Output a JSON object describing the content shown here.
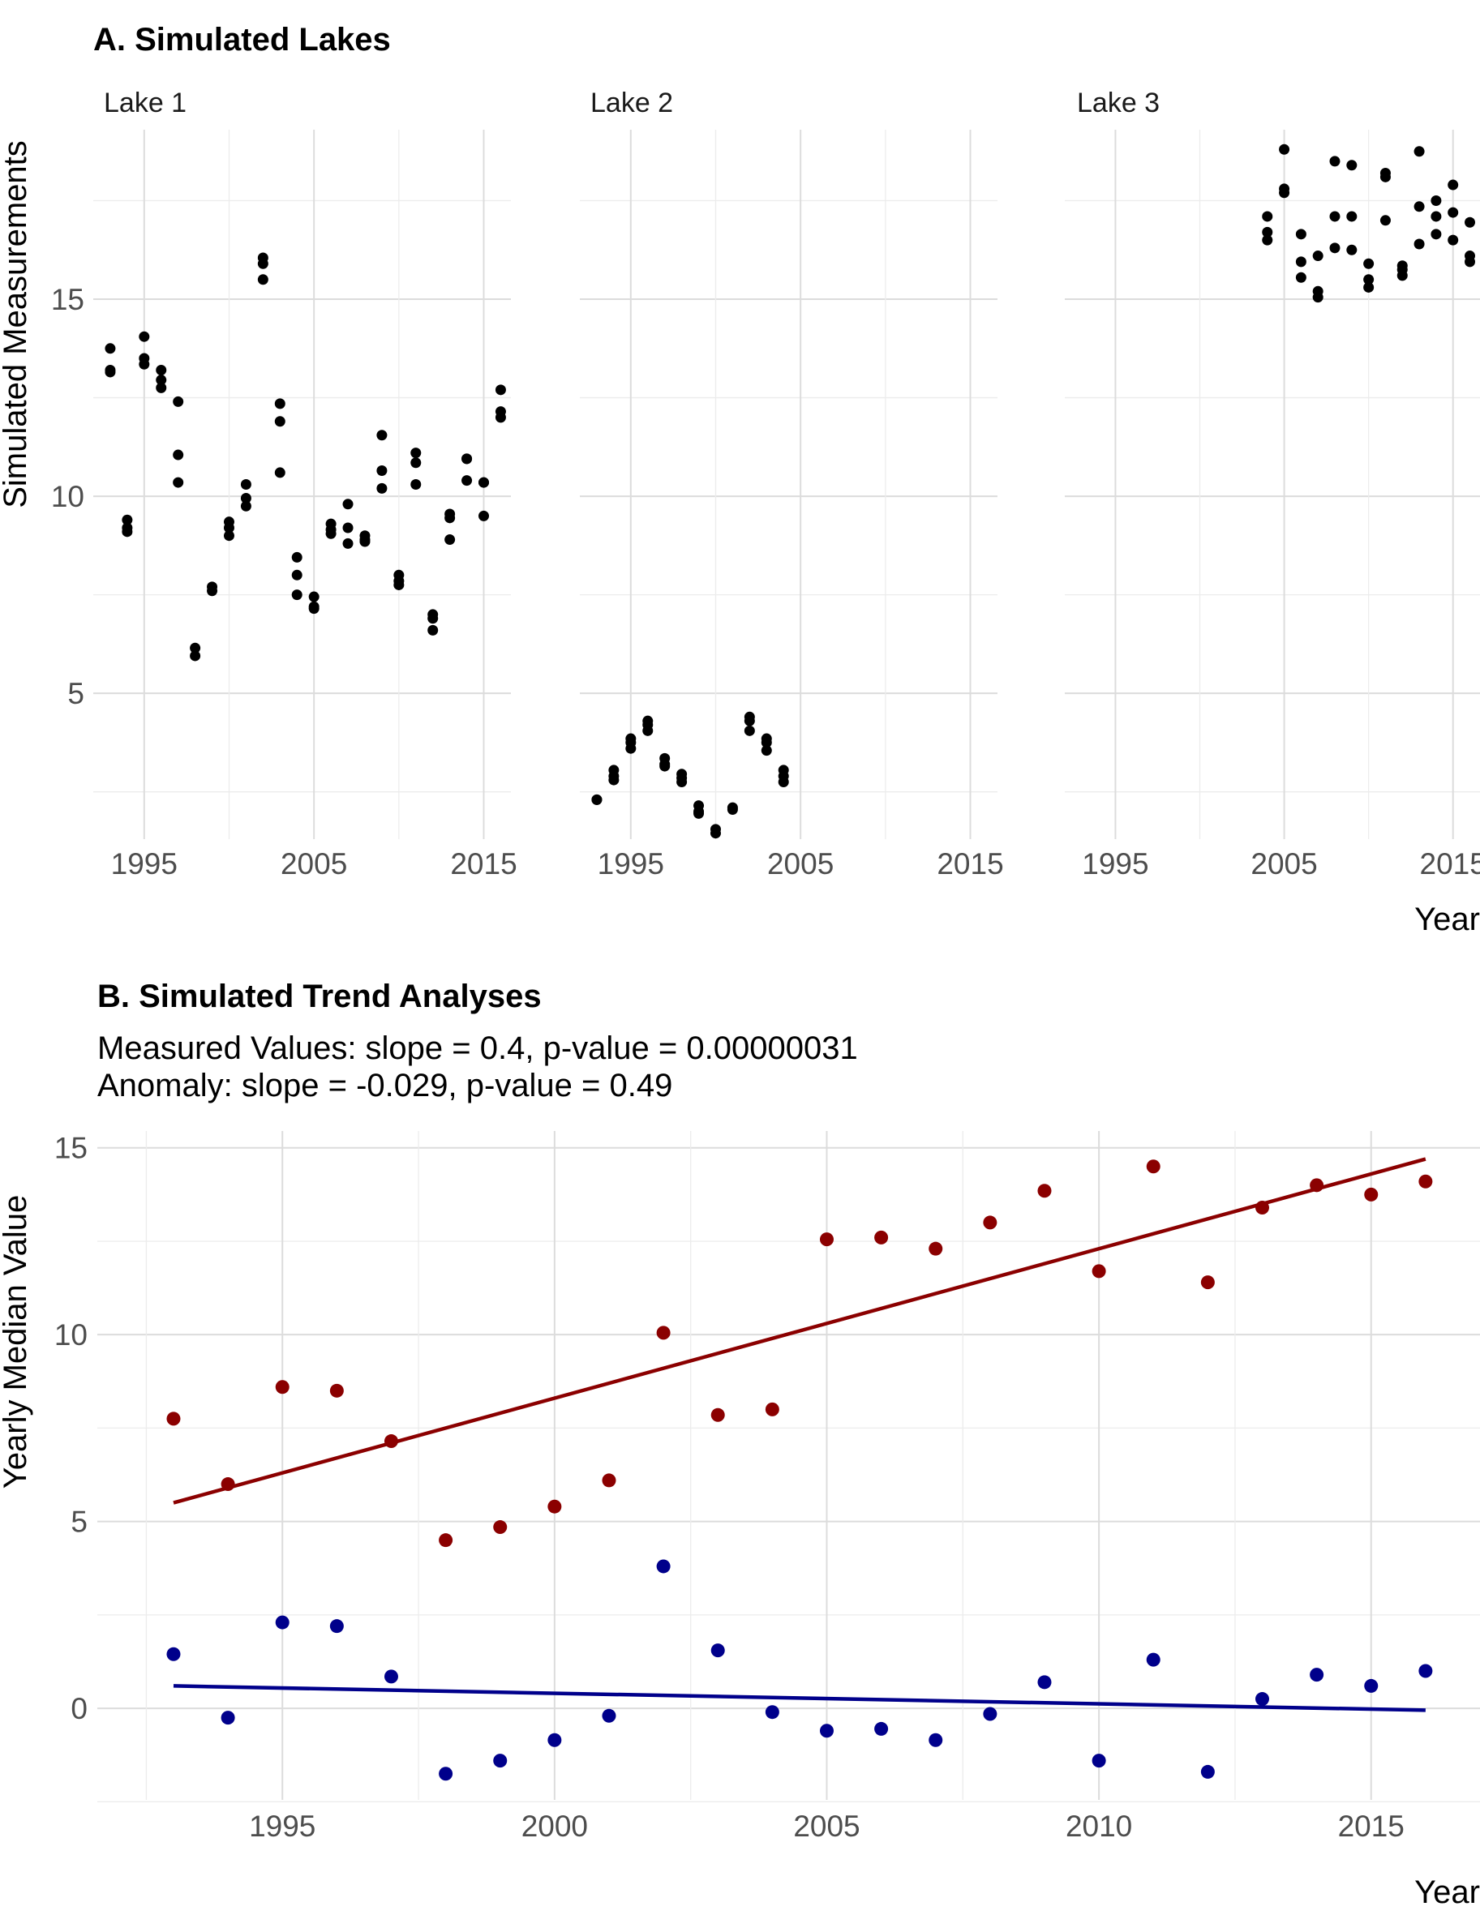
{
  "panel_a": {
    "title": "A. Simulated Lakes",
    "ylabel": "Simulated Measurements",
    "xlabel": "Year"
  },
  "panel_b": {
    "title": "B. Simulated Trend Analyses",
    "subtitle_line1": "Measured Values: slope = 0.4, p-value = 0.00000031",
    "subtitle_line2": "Anomaly: slope = -0.029, p-value = 0.49",
    "ylabel": "Yearly Median Value",
    "xlabel": "Year"
  },
  "colors": {
    "points_a": "#000000",
    "measured": "#8b0000",
    "anomaly": "#00008b",
    "grid_major": "#dcdcdc",
    "grid_minor": "#ececec"
  },
  "chart_data": [
    {
      "type": "scatter",
      "title": "A. Simulated Lakes",
      "xlabel": "Year",
      "ylabel": "Simulated Measurements",
      "facets": [
        "Lake 1",
        "Lake 2",
        "Lake 3"
      ],
      "xlim": [
        1992,
        2016.6
      ],
      "ylim": [
        1.3,
        19.3
      ],
      "xticks": [
        1995,
        2005,
        2015
      ],
      "yticks": [
        5,
        10,
        15
      ],
      "grid": true,
      "series": [
        {
          "facet": "Lake 1",
          "points": [
            [
              1993,
              13.75
            ],
            [
              1993,
              13.15
            ],
            [
              1993,
              13.2
            ],
            [
              1994,
              9.4
            ],
            [
              1994,
              9.1
            ],
            [
              1994,
              9.2
            ],
            [
              1995,
              14.05
            ],
            [
              1995,
              13.5
            ],
            [
              1995,
              13.35
            ],
            [
              1996,
              13.2
            ],
            [
              1996,
              12.95
            ],
            [
              1996,
              12.75
            ],
            [
              1997,
              12.4
            ],
            [
              1997,
              11.05
            ],
            [
              1997,
              10.35
            ],
            [
              1998,
              6.15
            ],
            [
              1998,
              5.95
            ],
            [
              1999,
              7.7
            ],
            [
              1999,
              7.6
            ],
            [
              2000,
              9.35
            ],
            [
              2000,
              9.2
            ],
            [
              2000,
              9.0
            ],
            [
              2001,
              10.3
            ],
            [
              2001,
              9.95
            ],
            [
              2001,
              9.75
            ],
            [
              2002,
              16.05
            ],
            [
              2002,
              15.9
            ],
            [
              2002,
              15.5
            ],
            [
              2003,
              12.35
            ],
            [
              2003,
              11.9
            ],
            [
              2003,
              10.6
            ],
            [
              2004,
              8.45
            ],
            [
              2004,
              8.0
            ],
            [
              2004,
              7.5
            ],
            [
              2005,
              7.45
            ],
            [
              2005,
              7.2
            ],
            [
              2005,
              7.15
            ],
            [
              2006,
              9.3
            ],
            [
              2006,
              9.15
            ],
            [
              2006,
              9.05
            ],
            [
              2007,
              9.8
            ],
            [
              2007,
              9.2
            ],
            [
              2007,
              8.8
            ],
            [
              2008,
              9.0
            ],
            [
              2008,
              8.9
            ],
            [
              2008,
              8.85
            ],
            [
              2009,
              11.55
            ],
            [
              2009,
              10.65
            ],
            [
              2009,
              10.2
            ],
            [
              2010,
              8.0
            ],
            [
              2010,
              7.85
            ],
            [
              2010,
              7.75
            ],
            [
              2011,
              11.1
            ],
            [
              2011,
              10.85
            ],
            [
              2011,
              10.3
            ],
            [
              2012,
              7.0
            ],
            [
              2012,
              6.9
            ],
            [
              2012,
              6.6
            ],
            [
              2013,
              9.55
            ],
            [
              2013,
              9.45
            ],
            [
              2013,
              8.9
            ],
            [
              2014,
              10.95
            ],
            [
              2014,
              10.95
            ],
            [
              2014,
              10.4
            ],
            [
              2015,
              10.35
            ],
            [
              2015,
              10.35
            ],
            [
              2015,
              9.5
            ],
            [
              2016,
              12.7
            ],
            [
              2016,
              12.15
            ],
            [
              2016,
              12.0
            ]
          ]
        },
        {
          "facet": "Lake 2",
          "points": [
            [
              1993,
              2.3
            ],
            [
              1993,
              2.3
            ],
            [
              1994,
              3.05
            ],
            [
              1994,
              2.9
            ],
            [
              1994,
              2.8
            ],
            [
              1995,
              3.85
            ],
            [
              1995,
              3.75
            ],
            [
              1995,
              3.6
            ],
            [
              1996,
              4.3
            ],
            [
              1996,
              4.2
            ],
            [
              1996,
              4.05
            ],
            [
              1997,
              3.35
            ],
            [
              1997,
              3.2
            ],
            [
              1997,
              3.15
            ],
            [
              1998,
              2.95
            ],
            [
              1998,
              2.85
            ],
            [
              1998,
              2.75
            ],
            [
              1999,
              2.15
            ],
            [
              1999,
              2.0
            ],
            [
              1999,
              1.95
            ],
            [
              2000,
              1.55
            ],
            [
              2000,
              1.45
            ],
            [
              2001,
              2.1
            ],
            [
              2001,
              2.05
            ],
            [
              2002,
              4.4
            ],
            [
              2002,
              4.3
            ],
            [
              2002,
              4.05
            ],
            [
              2003,
              3.85
            ],
            [
              2003,
              3.75
            ],
            [
              2003,
              3.55
            ],
            [
              2004,
              3.05
            ],
            [
              2004,
              2.9
            ],
            [
              2004,
              2.75
            ]
          ]
        },
        {
          "facet": "Lake 3",
          "points": [
            [
              2004,
              17.1
            ],
            [
              2004,
              16.7
            ],
            [
              2004,
              16.5
            ],
            [
              2005,
              18.8
            ],
            [
              2005,
              17.8
            ],
            [
              2005,
              17.7
            ],
            [
              2006,
              16.65
            ],
            [
              2006,
              15.95
            ],
            [
              2006,
              15.55
            ],
            [
              2007,
              16.1
            ],
            [
              2007,
              15.2
            ],
            [
              2007,
              15.05
            ],
            [
              2008,
              18.5
            ],
            [
              2008,
              17.1
            ],
            [
              2008,
              16.3
            ],
            [
              2009,
              18.4
            ],
            [
              2009,
              17.1
            ],
            [
              2009,
              16.25
            ],
            [
              2010,
              15.9
            ],
            [
              2010,
              15.5
            ],
            [
              2010,
              15.3
            ],
            [
              2011,
              18.2
            ],
            [
              2011,
              18.1
            ],
            [
              2011,
              17.0
            ],
            [
              2012,
              15.85
            ],
            [
              2012,
              15.75
            ],
            [
              2012,
              15.6
            ],
            [
              2013,
              18.75
            ],
            [
              2013,
              17.35
            ],
            [
              2013,
              16.4
            ],
            [
              2014,
              17.5
            ],
            [
              2014,
              17.1
            ],
            [
              2014,
              16.65
            ],
            [
              2015,
              17.9
            ],
            [
              2015,
              17.2
            ],
            [
              2015,
              16.5
            ],
            [
              2016,
              16.95
            ],
            [
              2016,
              16.1
            ],
            [
              2016,
              15.95
            ]
          ]
        }
      ]
    },
    {
      "type": "scatter",
      "title": "B. Simulated Trend Analyses",
      "xlabel": "Year",
      "ylabel": "Yearly Median Value",
      "xlim": [
        1991.6,
        2017.0
      ],
      "ylim": [
        -2.45,
        15.45
      ],
      "xticks": [
        1995,
        2000,
        2005,
        2010,
        2015
      ],
      "yticks": [
        0,
        5,
        10,
        15
      ],
      "grid": true,
      "x": [
        1993,
        1994,
        1995,
        1996,
        1997,
        1998,
        1999,
        2000,
        2001,
        2002,
        2003,
        2004,
        2005,
        2006,
        2007,
        2008,
        2009,
        2010,
        2011,
        2012,
        2013,
        2014,
        2015,
        2016
      ],
      "series": [
        {
          "values": [
            7.75,
            6.0,
            8.6,
            8.5,
            7.15,
            4.5,
            4.85,
            5.4,
            6.1,
            10.05,
            7.85,
            8.0,
            12.55,
            12.6,
            12.3,
            13.0,
            13.85,
            11.7,
            14.5,
            11.4,
            13.4,
            14.0,
            13.75,
            14.1
          ],
          "trend": {
            "x": [
              1993,
              2016
            ],
            "y": [
              5.5,
              14.7
            ]
          }
        },
        {
          "values": [
            1.45,
            -0.25,
            2.3,
            2.2,
            0.85,
            -1.75,
            -1.4,
            -0.85,
            -0.2,
            3.8,
            1.55,
            -0.1,
            -0.6,
            -0.55,
            -0.85,
            -0.15,
            0.7,
            -1.4,
            1.3,
            -1.7,
            0.25,
            0.9,
            0.6,
            1.0
          ],
          "trend": {
            "x": [
              1993,
              2016
            ],
            "y": [
              0.6,
              -0.05
            ]
          }
        }
      ]
    }
  ]
}
